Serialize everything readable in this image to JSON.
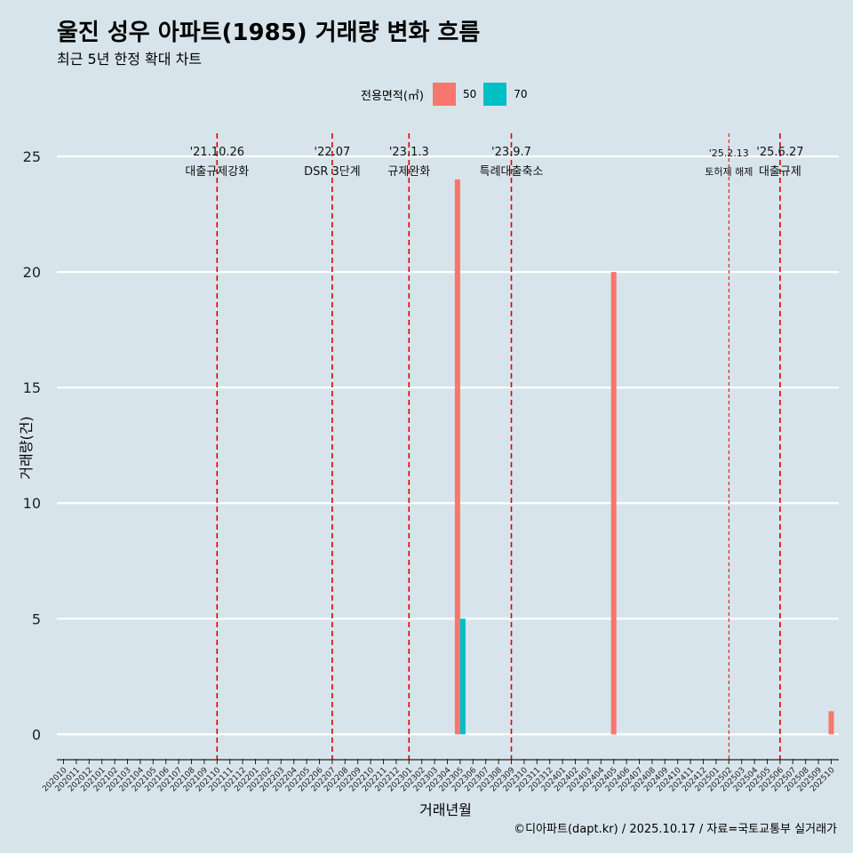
{
  "header": {
    "title": "울진 성우 아파트(1985) 거래량 변화 흐름",
    "subtitle": "최근 5년 한정 확대 차트"
  },
  "legend": {
    "title": "전용면적(㎡)",
    "items": [
      {
        "label": "50",
        "color": "#f8766d"
      },
      {
        "label": "70",
        "color": "#00bfc4"
      }
    ]
  },
  "caption": "©디아파트(dapt.kr) / 2025.10.17 / 자료=국토교통부 실거래가",
  "chart_data": {
    "type": "bar",
    "title": "울진 성우 아파트(1985) 거래량 변화 흐름",
    "xlabel": "거래년월",
    "ylabel": "거래량(건)",
    "ylim": [
      -1.1,
      26
    ],
    "yticks": [
      0,
      5,
      10,
      15,
      20,
      25
    ],
    "categories": [
      "202010",
      "202011",
      "202012",
      "202101",
      "202102",
      "202103",
      "202104",
      "202105",
      "202106",
      "202107",
      "202108",
      "202109",
      "202110",
      "202111",
      "202112",
      "202201",
      "202202",
      "202203",
      "202204",
      "202205",
      "202206",
      "202207",
      "202208",
      "202209",
      "202210",
      "202211",
      "202212",
      "202301",
      "202302",
      "202303",
      "202304",
      "202305",
      "202306",
      "202307",
      "202308",
      "202309",
      "202310",
      "202311",
      "202312",
      "202401",
      "202402",
      "202403",
      "202404",
      "202405",
      "202406",
      "202407",
      "202408",
      "202409",
      "202410",
      "202411",
      "202412",
      "202501",
      "202502",
      "202503",
      "202504",
      "202505",
      "202506",
      "202507",
      "202508",
      "202509",
      "202510"
    ],
    "series": [
      {
        "name": "50",
        "color": "#f8766d",
        "points": [
          {
            "x": "202305",
            "y": 24
          },
          {
            "x": "202405",
            "y": 20
          },
          {
            "x": "202510",
            "y": 1
          }
        ]
      },
      {
        "name": "70",
        "color": "#00bfc4",
        "points": [
          {
            "x": "202305",
            "y": 5
          }
        ]
      }
    ],
    "events": [
      {
        "date": "'21.10.26",
        "label": "대출규제강화",
        "x": "202110"
      },
      {
        "date": "'22.07",
        "label": "DSR 3단계",
        "x": "202207"
      },
      {
        "date": "'23.1.3",
        "label": "규제완화",
        "x": "202301"
      },
      {
        "date": "'23.9.7",
        "label": "특례대출축소",
        "x": "202309"
      },
      {
        "date": "'25.2.13",
        "label": "토허제 해제",
        "x": "202502"
      },
      {
        "date": "'25.6.27",
        "label": "대출규제",
        "x": "202506"
      }
    ]
  }
}
